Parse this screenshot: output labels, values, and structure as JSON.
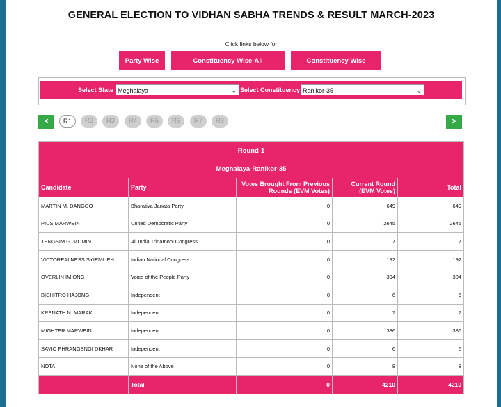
{
  "page": {
    "title": "GENERAL ELECTION TO VIDHAN SABHA TRENDS & RESULT MARCH-2023",
    "click_note": "Click links below for"
  },
  "nav_buttons": {
    "party_wise": "Party Wise",
    "constituency_all": "Constituency Wise-All Candidates",
    "constituency_trends": "Constituency Wise Trends"
  },
  "selectors": {
    "state_label": "Select State",
    "state_value": "Meghalaya",
    "constituency_label": "Select Constituency",
    "constituency_value": "Ranikor-35"
  },
  "rounds": {
    "prev": "<",
    "next": ">",
    "items": [
      "R1",
      "R2",
      "R3",
      "R4",
      "R5",
      "R6",
      "R7",
      "R8"
    ],
    "active": "R1"
  },
  "table": {
    "round_title": "Round-1",
    "constituency_title": "Meghalaya-Ranikor-35",
    "headers": {
      "candidate": "Candidate",
      "party": "Party",
      "votes_prev": "Votes Brought From Previous Rounds (EVM Votes)",
      "current": "Current Round (EVM Votes)",
      "total": "Total"
    },
    "rows": [
      {
        "candidate": "MARTIN M. DANGGO",
        "party": "Bharatiya Janata Party",
        "prev": "0",
        "current": "649",
        "total": "649"
      },
      {
        "candidate": "PIUS MARWEIN",
        "party": "United Democratic Party",
        "prev": "0",
        "current": "2645",
        "total": "2645"
      },
      {
        "candidate": "TENGSIM G. MOMIN",
        "party": "All India Trinamool Congress",
        "prev": "0",
        "current": "7",
        "total": "7"
      },
      {
        "candidate": "VICTOREALNESS SYIEMLIEH",
        "party": "Indian National Congress",
        "prev": "0",
        "current": "192",
        "total": "192"
      },
      {
        "candidate": "OVERLIN IMIONG",
        "party": "Voice of the People Party",
        "prev": "0",
        "current": "304",
        "total": "304"
      },
      {
        "candidate": "BICHITRO HAJONG",
        "party": "Independent",
        "prev": "0",
        "current": "6",
        "total": "6"
      },
      {
        "candidate": "KRENATH N. MARAK",
        "party": "Independent",
        "prev": "0",
        "current": "7",
        "total": "7"
      },
      {
        "candidate": "MIGHTER MARWEIN",
        "party": "Independent",
        "prev": "0",
        "current": "386",
        "total": "386"
      },
      {
        "candidate": "SAVIO PHRANGSNGI DKHAR",
        "party": "Independent",
        "prev": "0",
        "current": "6",
        "total": "6"
      },
      {
        "candidate": "NOTA",
        "party": "None of the Above",
        "prev": "0",
        "current": "8",
        "total": "8"
      }
    ],
    "total_row": {
      "label": "Total",
      "prev": "0",
      "current": "4210",
      "total": "4210"
    }
  },
  "colors": {
    "accent": "#e8256a",
    "nav_green": "#35a848",
    "frame": "#1b6f93"
  }
}
